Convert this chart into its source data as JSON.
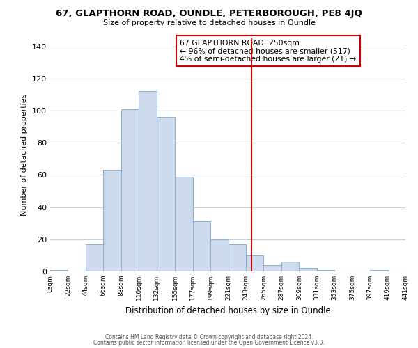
{
  "title_line1": "67, GLAPTHORN ROAD, OUNDLE, PETERBOROUGH, PE8 4JQ",
  "title_line2": "Size of property relative to detached houses in Oundle",
  "xlabel": "Distribution of detached houses by size in Oundle",
  "ylabel": "Number of detached properties",
  "bin_edges": [
    0,
    22,
    44,
    66,
    88,
    110,
    132,
    155,
    177,
    199,
    221,
    243,
    265,
    287,
    309,
    331,
    353,
    375,
    397,
    419,
    441
  ],
  "bar_heights": [
    1,
    0,
    17,
    63,
    101,
    112,
    96,
    59,
    31,
    20,
    17,
    10,
    4,
    6,
    2,
    1,
    0,
    0,
    1,
    0
  ],
  "bar_color": "#cddaeb",
  "bar_edge_color": "#8aafd4",
  "vline_x": 250,
  "vline_color": "#cc0000",
  "annotation_title": "67 GLAPTHORN ROAD: 250sqm",
  "annotation_line2": "← 96% of detached houses are smaller (517)",
  "annotation_line3": "4% of semi-detached houses are larger (21) →",
  "ylim": [
    0,
    145
  ],
  "yticks": [
    0,
    20,
    40,
    60,
    80,
    100,
    120,
    140
  ],
  "footer_line1": "Contains HM Land Registry data © Crown copyright and database right 2024.",
  "footer_line2": "Contains public sector information licensed under the Open Government Licence v3.0.",
  "background_color": "#ffffff",
  "grid_color": "#c8d0dc"
}
